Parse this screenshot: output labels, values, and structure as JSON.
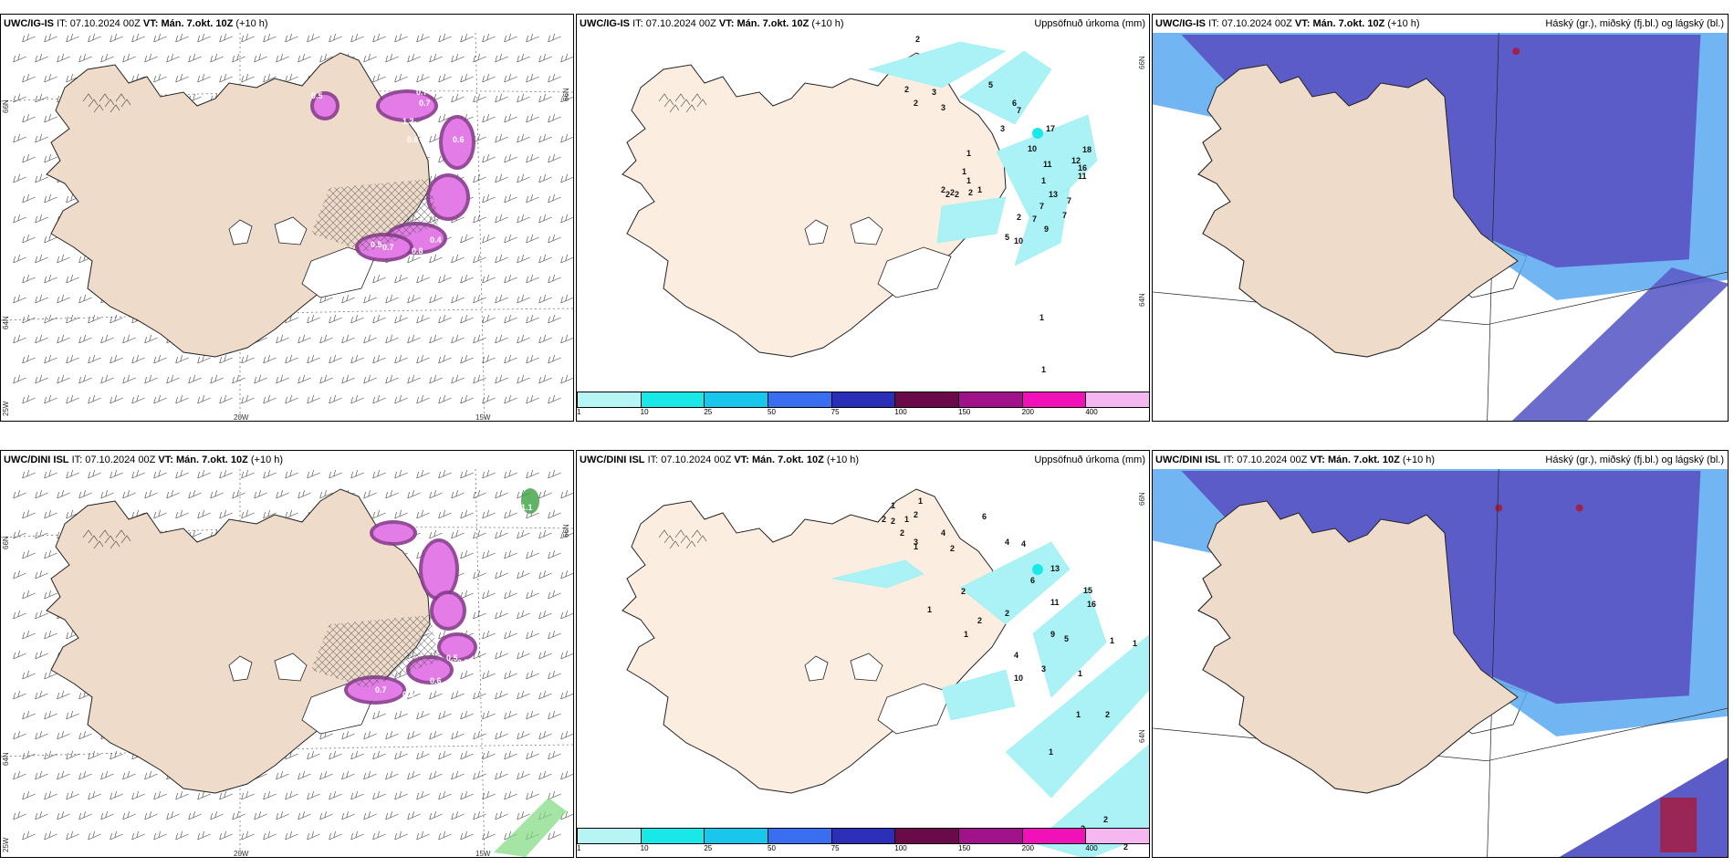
{
  "panels": [
    {
      "id": "top-left",
      "model": "UWC/IG-IS",
      "it_label": "IT:",
      "it_value": "07.10.2024 00Z",
      "vt_label": "VT:",
      "vt_value": "Mán. 7.okt. 10Z",
      "lead": "(+10 h)",
      "right_title": "",
      "axis": {
        "lat_top": "66N",
        "lat_mid": "64N",
        "lat_bottom": "25W",
        "lon_a": "20W",
        "lon_b": "15W",
        "lat_right": ""
      },
      "values": [
        "0.5",
        "0.7",
        "0.6",
        "0.7",
        "1.2",
        "0.6",
        "0.5",
        "0.7",
        "0.8",
        "0.4"
      ]
    },
    {
      "id": "top-middle",
      "model": "UWC/IG-IS",
      "it_label": "IT:",
      "it_value": "07.10.2024 00Z",
      "vt_label": "VT:",
      "vt_value": "Mán. 7.okt. 10Z",
      "lead": "(+10 h)",
      "right_title": "Uppsöfnuð úrkoma (mm)",
      "axis": {
        "lat_top": "66N",
        "lat_mid": "64N"
      },
      "values": [
        "2",
        "2",
        "5",
        "2",
        "3",
        "3",
        "6",
        "7",
        "2",
        "2",
        "1",
        "1",
        "17",
        "3",
        "10",
        "1",
        "11",
        "12",
        "16",
        "18",
        "1",
        "11",
        "2",
        "2",
        "2",
        "1",
        "13",
        "7",
        "2",
        "7",
        "7",
        "7",
        "9",
        "10",
        "5",
        "1",
        "1"
      ]
    },
    {
      "id": "top-right",
      "model": "UWC/IG-IS",
      "it_label": "IT:",
      "it_value": "07.10.2024 00Z",
      "vt_label": "VT:",
      "vt_value": "Mán. 7.okt. 10Z",
      "lead": "(+10 h)",
      "right_title": "Háský (gr.), miðský (fj.bl.) og lágský (bl.)"
    },
    {
      "id": "bottom-left",
      "model": "UWC/DINI ISL",
      "it_label": "IT:",
      "it_value": "07.10.2024 00Z",
      "vt_label": "VT:",
      "vt_value": "Mán. 7.okt. 10Z",
      "lead": "(+10 h)",
      "right_title": "",
      "axis": {
        "lat_top": "66N",
        "lat_mid": "64N",
        "lat_bottom": "25W",
        "lon_a": "20W",
        "lon_b": "15W"
      },
      "values": [
        "1.1",
        "0.3",
        "1.0",
        "1.0",
        "0.5",
        "0.5",
        "0.7",
        "0.4",
        "0.6",
        "0.6"
      ]
    },
    {
      "id": "bottom-middle",
      "model": "UWC/DINI ISL",
      "it_label": "IT:",
      "it_value": "07.10.2024 00Z",
      "vt_label": "VT:",
      "vt_value": "Mán. 7.okt. 10Z",
      "lead": "(+10 h)",
      "right_title": "Uppsöfnuð úrkoma (mm)",
      "axis": {
        "lat_top": "66N",
        "lat_mid": "64N"
      },
      "values": [
        "1",
        "1",
        "2",
        "2",
        "1",
        "2",
        "6",
        "2",
        "1",
        "3",
        "4",
        "2",
        "4",
        "4",
        "13",
        "2",
        "6",
        "15",
        "16",
        "11",
        "2",
        "1",
        "2",
        "1",
        "9",
        "5",
        "4",
        "1",
        "1",
        "10",
        "3",
        "1",
        "2",
        "1",
        "2",
        "2",
        "2",
        "2",
        "1"
      ]
    },
    {
      "id": "bottom-right",
      "model": "UWC/DINI ISL",
      "it_label": "IT:",
      "it_value": "07.10.2024 00Z",
      "vt_label": "VT:",
      "vt_value": "Mán. 7.okt. 10Z",
      "lead": "(+10 h)",
      "right_title": "Háský (gr.), miðský (fj.bl.) og lágský (bl.)"
    }
  ],
  "colorbar": {
    "ticks": [
      "1",
      "10",
      "25",
      "50",
      "75",
      "100",
      "150",
      "200",
      "400"
    ],
    "colors": [
      "#b7f5f5",
      "#19e8e8",
      "#19c6ec",
      "#3a6ef0",
      "#2b2fb8",
      "#6a0a48",
      "#a0128a",
      "#f012b8",
      "#f5b7ef"
    ]
  },
  "colors": {
    "land": "#eedbc9",
    "land_light": "#fbeee0",
    "snow_pink": "#e37ce6",
    "snow_dark": "#8a3a8e",
    "precip": "#aaf2f5",
    "cloud_mid": "#5c5cc8",
    "cloud_low": "#58a8f0",
    "cloud_high": "#a02048"
  }
}
